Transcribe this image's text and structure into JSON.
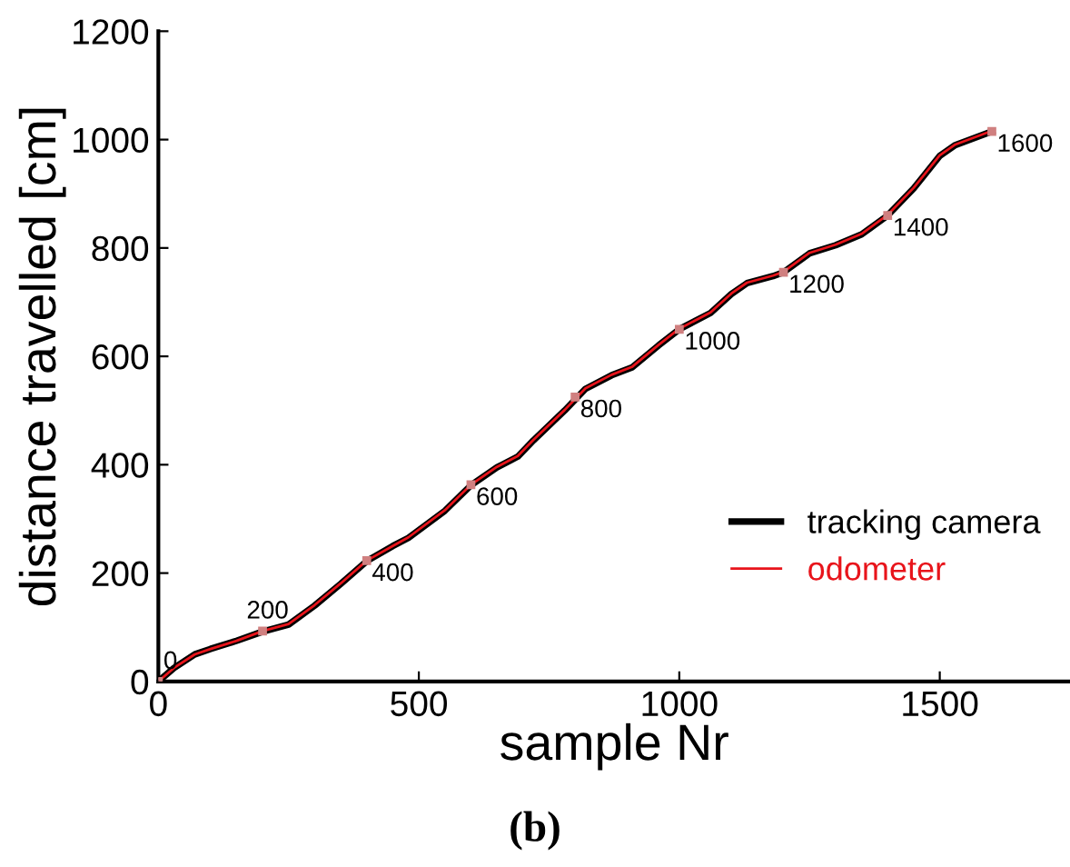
{
  "chart_data": {
    "type": "line",
    "xlabel": "sample Nr",
    "ylabel": "distance travelled [cm]",
    "xlim": [
      0,
      1750
    ],
    "xticks": [
      0,
      500,
      1000,
      1500
    ],
    "ylim": [
      0,
      1200
    ],
    "yticks": [
      0,
      200,
      400,
      600,
      800,
      1000,
      1200
    ],
    "grid": false,
    "legend": "bottom right",
    "line_style": "solid",
    "series": [
      {
        "name": "tracking camera",
        "color": "#000000",
        "x": [
          0,
          30,
          70,
          100,
          150,
          200,
          250,
          300,
          350,
          400,
          450,
          480,
          550,
          600,
          650,
          690,
          720,
          780,
          820,
          870,
          910,
          960,
          1000,
          1060,
          1100,
          1130,
          1180,
          1200,
          1250,
          1300,
          1350,
          1400,
          1450,
          1500,
          1530,
          1600
        ],
        "values": [
          0,
          25,
          50,
          60,
          75,
          92,
          105,
          140,
          180,
          222,
          250,
          265,
          315,
          362,
          395,
          415,
          445,
          500,
          540,
          565,
          580,
          620,
          650,
          680,
          715,
          735,
          748,
          755,
          790,
          805,
          825,
          860,
          910,
          970,
          990,
          1015
        ]
      },
      {
        "name": "odometer",
        "color": "#e8141b",
        "x": [
          0,
          30,
          70,
          100,
          150,
          200,
          250,
          300,
          350,
          400,
          450,
          480,
          550,
          600,
          650,
          690,
          720,
          780,
          820,
          870,
          910,
          960,
          1000,
          1060,
          1100,
          1130,
          1180,
          1200,
          1250,
          1300,
          1350,
          1400,
          1450,
          1500,
          1530,
          1600
        ],
        "values": [
          0,
          25,
          50,
          60,
          75,
          93,
          106,
          141,
          181,
          223,
          250,
          266,
          316,
          363,
          396,
          416,
          446,
          501,
          541,
          566,
          581,
          621,
          651,
          681,
          716,
          736,
          749,
          756,
          791,
          806,
          826,
          861,
          911,
          971,
          991,
          1016
        ]
      }
    ],
    "annotations": [
      {
        "text": "0",
        "x": 0,
        "y": 0
      },
      {
        "text": "200",
        "x": 200,
        "y": 93
      },
      {
        "text": "400",
        "x": 400,
        "y": 223
      },
      {
        "text": "600",
        "x": 600,
        "y": 363
      },
      {
        "text": "800",
        "x": 800,
        "y": 525
      },
      {
        "text": "1000",
        "x": 1000,
        "y": 650
      },
      {
        "text": "1200",
        "x": 1200,
        "y": 755
      },
      {
        "text": "1400",
        "x": 1400,
        "y": 860
      },
      {
        "text": "1600",
        "x": 1600,
        "y": 1015
      },
      "(b)"
    ]
  }
}
